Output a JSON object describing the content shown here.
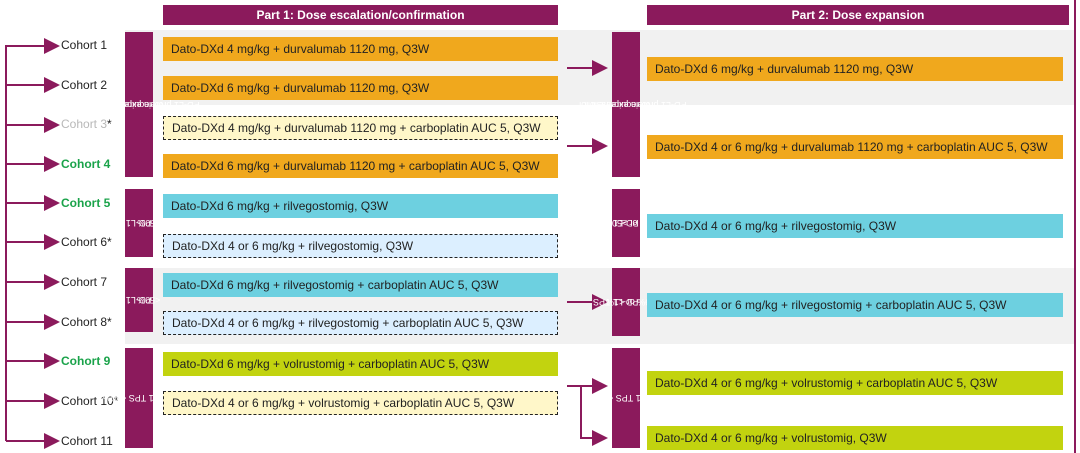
{
  "headers": {
    "part1": "Part 1: Dose escalation/confirmation",
    "part2": "Part 2: Dose expansion"
  },
  "cohorts": [
    {
      "label": "Cohort 1",
      "style": "normal",
      "asterisk": ""
    },
    {
      "label": "Cohort 2",
      "style": "normal",
      "asterisk": ""
    },
    {
      "label": "Cohort 3",
      "style": "grey",
      "asterisk": "*"
    },
    {
      "label": "Cohort 4",
      "style": "green",
      "asterisk": ""
    },
    {
      "label": "Cohort 5",
      "style": "green",
      "asterisk": ""
    },
    {
      "label": "Cohort 6",
      "style": "normal",
      "asterisk": "*"
    },
    {
      "label": "Cohort 7",
      "style": "normal",
      "asterisk": ""
    },
    {
      "label": "Cohort 8",
      "style": "normal",
      "asterisk": "*"
    },
    {
      "label": "Cohort 9",
      "style": "green",
      "asterisk": ""
    },
    {
      "label": "Cohort 10",
      "style": "normal",
      "asterisk": "*"
    },
    {
      "label": "Cohort 11",
      "style": "normal",
      "asterisk": ""
    }
  ],
  "part1_groups": [
    {
      "label_line1": "No requirement for",
      "label_line2": "PD-L1 protein expression"
    },
    {
      "label_line1": "PD-L1 TPS",
      "label_line2": "≥50%"
    },
    {
      "label_line1": "PD-L1 TPS",
      "label_line2": "<50%"
    },
    {
      "label_line1": "PD-L1 TPS <50%",
      "label_line2": ""
    }
  ],
  "part1_regimens": [
    "Dato-DXd 4 mg/kg + durvalumab  1120 mg, Q3W",
    "Dato-DXd 6 mg/kg + durvalumab  1120 mg, Q3W",
    "Dato-DXd 4 mg/kg + durvalumab  1120 mg + carboplatin AUC 5, Q3W",
    "Dato-DXd 6 mg/kg + durvalumab  1120 mg + carboplatin AUC 5, Q3W",
    "Dato-DXd 6 mg/kg + rilvegostomig,  Q3W",
    "Dato-DXd 4 or 6 mg/kg + rilvegostomig,  Q3W",
    "Dato-DXd 6 mg/kg + rilvegostomig  + carboplatin AUC 5, Q3W",
    "Dato-DXd 4 or 6 mg/kg + rilvegostomig  + carboplatin AUC 5, Q3W",
    "Dato-DXd 6 mg/kg + volrustomig  + carboplatin AUC 5, Q3W",
    "Dato-DXd 4 or 6 mg/kg + volrustomig  + carboplatin AUC 5, Q3W"
  ],
  "part2_groups": [
    {
      "label_line1": "No requirement for",
      "label_line2": "PD-L1 protein expression"
    },
    {
      "label_line1": "PD-L1 TPS",
      "label_line2": "1–49% or ≥50%"
    },
    {
      "label_line1": "PD-L1 TPS",
      "label_line2": "1–49% or <1%"
    },
    {
      "label_line1": "PD-L1 TPS <50%",
      "label_line2": ""
    }
  ],
  "part2_regimens": [
    "Dato-DXd 6 mg/kg + durvalumab  1120 mg, Q3W",
    "Dato-DXd 4 or 6 mg/kg + durvalumab  1120 mg + carboplatin AUC 5, Q3W",
    "Dato-DXd 4 or 6 mg/kg + rilvegostomig,  Q3W",
    "Dato-DXd 4 or 6 mg/kg + rilvegostomig  + carboplatin AUC 5, Q3W",
    "Dato-DXd 4 or 6 mg/kg + volrustomig  + carboplatin AUC 5, Q3W",
    "Dato-DXd 4 or 6 mg/kg + volrustomig,  Q3W"
  ],
  "colors": {
    "header": "#8b1a5c",
    "durvalumab": "#f0a81d",
    "rilvegostomig": "#6dd0e0",
    "volrustomig": "#c2d30f",
    "highlight_cohort": "#1aa34a"
  }
}
